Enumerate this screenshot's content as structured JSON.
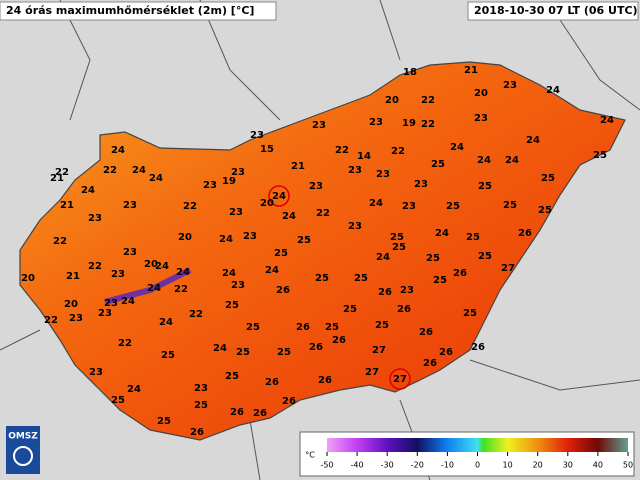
{
  "header": {
    "title": "24 órás maximumhőmérséklet (2m) [°C]",
    "timestamp": "2018-10-30 07 LT (06 UTC)"
  },
  "stations": [
    {
      "value": 18
    },
    {
      "value": 21
    },
    {
      "value": 20
    },
    {
      "value": 22
    },
    {
      "value": 20
    },
    {
      "value": 23
    },
    {
      "value": 24
    },
    {
      "value": 24
    },
    {
      "value": 23
    },
    {
      "value": 23
    },
    {
      "value": 23
    },
    {
      "value": 19
    },
    {
      "value": 22
    },
    {
      "value": 23
    },
    {
      "value": 15
    },
    {
      "value": 22
    },
    {
      "value": 14
    },
    {
      "value": 22
    },
    {
      "value": 24
    },
    {
      "value": 24
    },
    {
      "value": 25
    },
    {
      "value": 24
    },
    {
      "value": 22
    },
    {
      "value": 24
    },
    {
      "value": 23
    },
    {
      "value": 21
    },
    {
      "value": 23
    },
    {
      "value": 23
    },
    {
      "value": 25
    },
    {
      "value": 24
    },
    {
      "value": 24
    },
    {
      "value": 22
    },
    {
      "value": 21
    },
    {
      "value": 19
    },
    {
      "value": 24
    },
    {
      "value": 23
    },
    {
      "value": 24
    },
    {
      "value": 23
    },
    {
      "value": 23
    },
    {
      "value": 25
    },
    {
      "value": 25
    },
    {
      "value": 24,
      "highlight": true
    },
    {
      "value": 20
    },
    {
      "value": 24
    },
    {
      "value": 21
    },
    {
      "value": 23
    },
    {
      "value": 22
    },
    {
      "value": 23
    },
    {
      "value": 22
    },
    {
      "value": 24
    },
    {
      "value": 23
    },
    {
      "value": 25
    },
    {
      "value": 25
    },
    {
      "value": 25
    },
    {
      "value": 23
    },
    {
      "value": 23
    },
    {
      "value": 25
    },
    {
      "value": 24
    },
    {
      "value": 25
    },
    {
      "value": 26
    },
    {
      "value": 22
    },
    {
      "value": 23
    },
    {
      "value": 20
    },
    {
      "value": 24
    },
    {
      "value": 23
    },
    {
      "value": 25
    },
    {
      "value": 25
    },
    {
      "value": 25
    },
    {
      "value": 24
    },
    {
      "value": 20
    },
    {
      "value": 25
    },
    {
      "value": 25
    },
    {
      "value": 22
    },
    {
      "value": 24
    },
    {
      "value": 24
    },
    {
      "value": 21
    },
    {
      "value": 23
    },
    {
      "value": 24
    },
    {
      "value": 24
    },
    {
      "value": 26
    },
    {
      "value": 27
    },
    {
      "value": 20
    },
    {
      "value": 25
    },
    {
      "value": 25
    },
    {
      "value": 24
    },
    {
      "value": 22
    },
    {
      "value": 23
    },
    {
      "value": 26
    },
    {
      "value": 23
    },
    {
      "value": 25
    },
    {
      "value": 26
    },
    {
      "value": 23
    },
    {
      "value": 24
    },
    {
      "value": 20
    },
    {
      "value": 23
    },
    {
      "value": 25
    },
    {
      "value": 25
    },
    {
      "value": 26
    },
    {
      "value": 25
    },
    {
      "value": 22
    },
    {
      "value": 23
    },
    {
      "value": 24
    },
    {
      "value": 22
    },
    {
      "value": 26
    },
    {
      "value": 25
    },
    {
      "value": 25
    },
    {
      "value": 25
    },
    {
      "value": 26
    },
    {
      "value": 26
    },
    {
      "value": 22
    },
    {
      "value": 25
    },
    {
      "value": 24
    },
    {
      "value": 25
    },
    {
      "value": 25
    },
    {
      "value": 26
    },
    {
      "value": 26
    },
    {
      "value": 27
    },
    {
      "value": 26
    },
    {
      "value": 26
    },
    {
      "value": 23
    },
    {
      "value": 25
    },
    {
      "value": 26
    },
    {
      "value": 26
    },
    {
      "value": 27
    },
    {
      "value": 27,
      "highlight": true
    },
    {
      "value": 24
    },
    {
      "value": 23
    },
    {
      "value": 25
    },
    {
      "value": 25
    },
    {
      "value": 26
    },
    {
      "value": 26
    },
    {
      "value": 26
    },
    {
      "value": 25
    },
    {
      "value": 26
    }
  ],
  "legend": {
    "unit": "°C",
    "ticks": [
      -50,
      -40,
      -30,
      -20,
      -10,
      0,
      10,
      20,
      30,
      40,
      50
    ]
  },
  "logo": "OMSZ"
}
